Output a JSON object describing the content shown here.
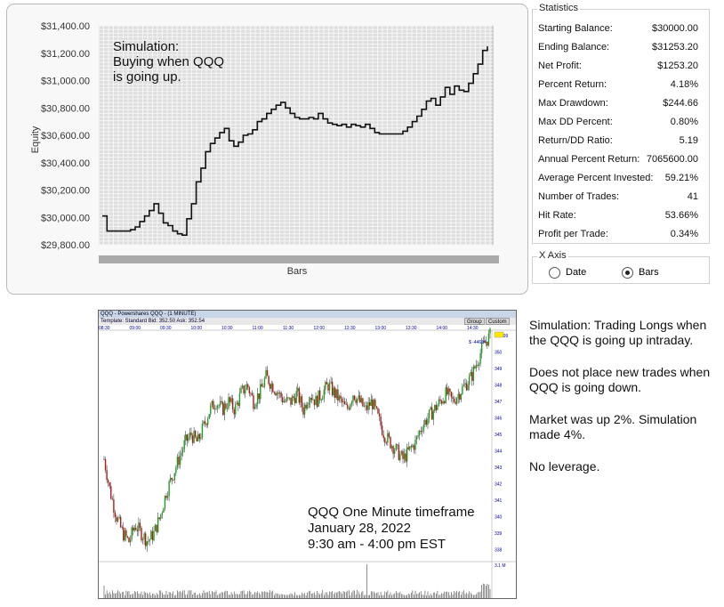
{
  "equity_chart": {
    "ylabel": "Equity",
    "xlabel": "Bars",
    "y_ticks": [
      "$31,400.00",
      "$31,200.00",
      "$31,000.00",
      "$30,800.00",
      "$30,600.00",
      "$30,400.00",
      "$30,200.00",
      "$30,000.00",
      "$29,800.00"
    ],
    "annotation_lines": [
      "Simulation:",
      "Buying when QQQ",
      "is going up."
    ]
  },
  "chart_data": {
    "type": "line",
    "title": "",
    "xlabel": "Bars",
    "ylabel": "Equity",
    "ylim": [
      29800,
      31400
    ],
    "grid": true,
    "series": [
      {
        "values": [
          30010,
          29900,
          29900,
          29900,
          29900,
          29900,
          29910,
          29930,
          29970,
          30010,
          30050,
          30100,
          30030,
          29960,
          29940,
          29900,
          29880,
          29870,
          29990,
          30100,
          30260,
          30360,
          30480,
          30540,
          30580,
          30620,
          30650,
          30560,
          30520,
          30550,
          30600,
          30610,
          30640,
          30700,
          30720,
          30760,
          30790,
          30820,
          30840,
          30800,
          30760,
          30730,
          30720,
          30720,
          30730,
          30720,
          30760,
          30720,
          30690,
          30680,
          30670,
          30680,
          30660,
          30680,
          30670,
          30660,
          30680,
          30650,
          30620,
          30610,
          30610,
          30610,
          30610,
          30610,
          30630,
          30660,
          30700,
          30740,
          30790,
          30850,
          30870,
          30820,
          30880,
          30950,
          30900,
          30960,
          30930,
          30920,
          30980,
          31050,
          31120,
          31220,
          31250
        ]
      }
    ]
  },
  "statistics": {
    "title": "Statistics",
    "rows": [
      {
        "label": "Starting Balance:",
        "value": "$30000.00"
      },
      {
        "label": "Ending Balance:",
        "value": "$31253.20"
      },
      {
        "label": "Net Profit:",
        "value": "$1253.20"
      },
      {
        "label": "Percent Return:",
        "value": "4.18%"
      },
      {
        "label": "Max Drawdown:",
        "value": "$244.66"
      },
      {
        "label": "Max DD Percent:",
        "value": "0.80%"
      },
      {
        "label": "Return/DD Ratio:",
        "value": "5.19"
      },
      {
        "label": "Annual Percent Return:",
        "value": "7065600.00"
      },
      {
        "label": "Average Percent Invested:",
        "value": "59.21%"
      },
      {
        "label": "Number of Trades:",
        "value": "41"
      },
      {
        "label": "Hit Rate:",
        "value": "53.66%"
      },
      {
        "label": "Profit per Trade:",
        "value": "0.34%"
      }
    ]
  },
  "x_axis_options": {
    "title": "X Axis",
    "options": [
      {
        "label": "Date",
        "selected": false
      },
      {
        "label": "Bars",
        "selected": true
      }
    ]
  },
  "qqq_chart": {
    "window_title": "QQQ - Powershares QQQ - (1 MINUTE)",
    "toolbar_text": "Template: Standard   Bid: 352.50   Ask: 352.54",
    "buttons": [
      "Group",
      "Custom"
    ],
    "time_labels": [
      "08:30",
      "09:00",
      "09:30",
      "10:00",
      "10:30",
      "11:00",
      "11:30",
      "12:00",
      "12:30",
      "13:00",
      "13:30",
      "14:00",
      "14:30"
    ],
    "price_labels": [
      "350.99",
      "350",
      "349",
      "348",
      "347",
      "346",
      "345",
      "344",
      "343",
      "342",
      "341",
      "340",
      "339",
      "338"
    ],
    "change_label": "$ -44687",
    "volume_label": "3.1 M",
    "caption_lines": [
      "QQQ One Minute timeframe",
      "January 28, 2022",
      "9:30 am - 4:00 pm EST"
    ],
    "price_path": [
      343.5,
      341.5,
      340,
      339,
      338.5,
      339.5,
      339,
      338.5,
      339,
      340,
      341.5,
      342.5,
      343.5,
      344.5,
      345,
      344.5,
      345.5,
      346.5,
      347,
      346.5,
      347,
      346.5,
      347.5,
      348,
      347,
      347.5,
      348.5,
      348,
      347.5,
      347,
      347,
      347.5,
      346.5,
      347.5,
      347,
      347.5,
      348,
      347.5,
      347,
      346.5,
      347.5,
      347,
      346.5,
      347,
      346,
      345,
      344.5,
      344,
      343.5,
      344,
      344.5,
      345.5,
      346,
      346.5,
      347,
      347.5,
      347,
      347.5,
      348,
      348.5,
      349.5,
      350.5,
      351
    ]
  },
  "description": {
    "paragraphs": [
      "Simulation:  Trading Longs when the QQQ is going up intraday.",
      "Does not place new trades when QQQ is going down.",
      "Market was up 2%. Simulation made 4%.",
      "No leverage."
    ]
  }
}
